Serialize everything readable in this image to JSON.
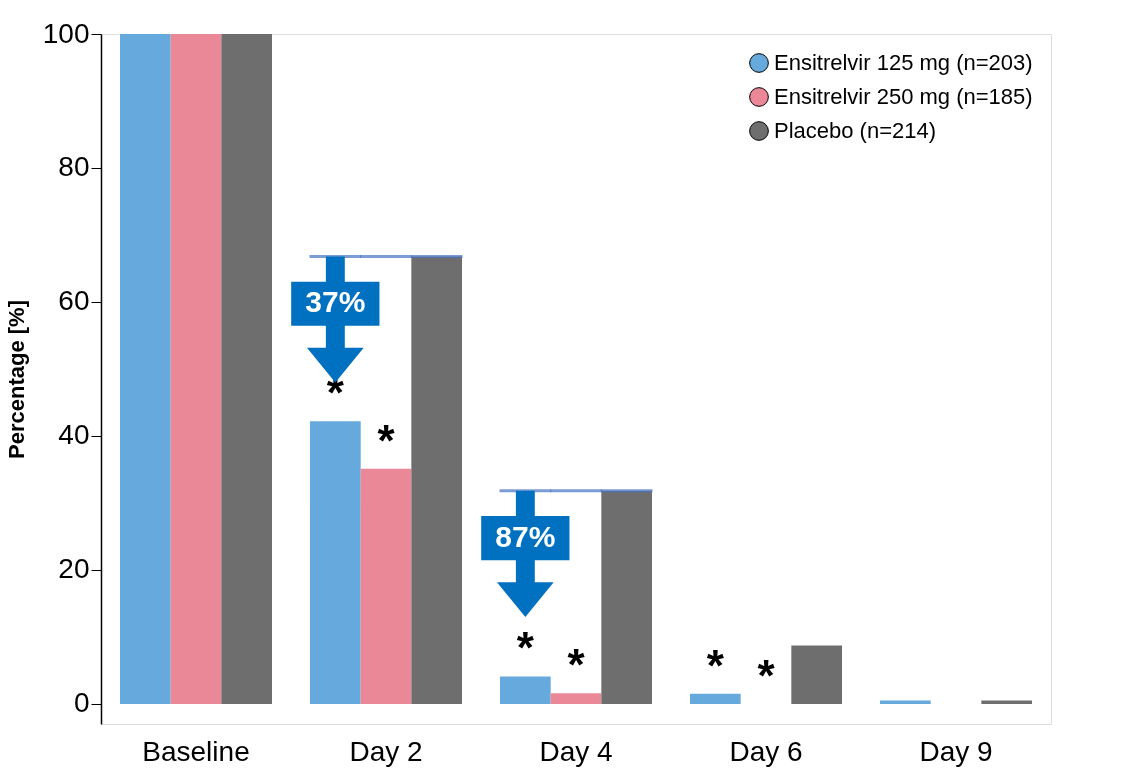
{
  "chart_data": {
    "type": "bar",
    "ylabel": "Percentage [%]",
    "categories": [
      "Baseline",
      "Day 2",
      "Day 4",
      "Day 6",
      "Day 9"
    ],
    "series": [
      {
        "name": "Ensitrelvir 125 mg (n=203)",
        "color": "#66aadd",
        "values": [
          100,
          42.2,
          4.1,
          1.5,
          0.5
        ],
        "value_labels": [
          null,
          "*",
          "*",
          "*",
          null
        ]
      },
      {
        "name": "Ensitrelvir 250 mg (n=185)",
        "color": "#eb8898",
        "values": [
          100,
          35.1,
          1.6,
          0,
          0
        ],
        "value_labels": [
          null,
          "*",
          "*",
          "*",
          null
        ]
      },
      {
        "name": "Placebo (n=214)",
        "color": "#6e6e6e",
        "values": [
          100,
          66.8,
          31.8,
          8.7,
          0.5
        ]
      }
    ],
    "ylim": [
      -3,
      100
    ],
    "yticks": [
      0,
      20,
      40,
      60,
      80,
      100
    ],
    "grid": false,
    "legend": "top right",
    "annotations": [
      "37%",
      "87%"
    ]
  }
}
